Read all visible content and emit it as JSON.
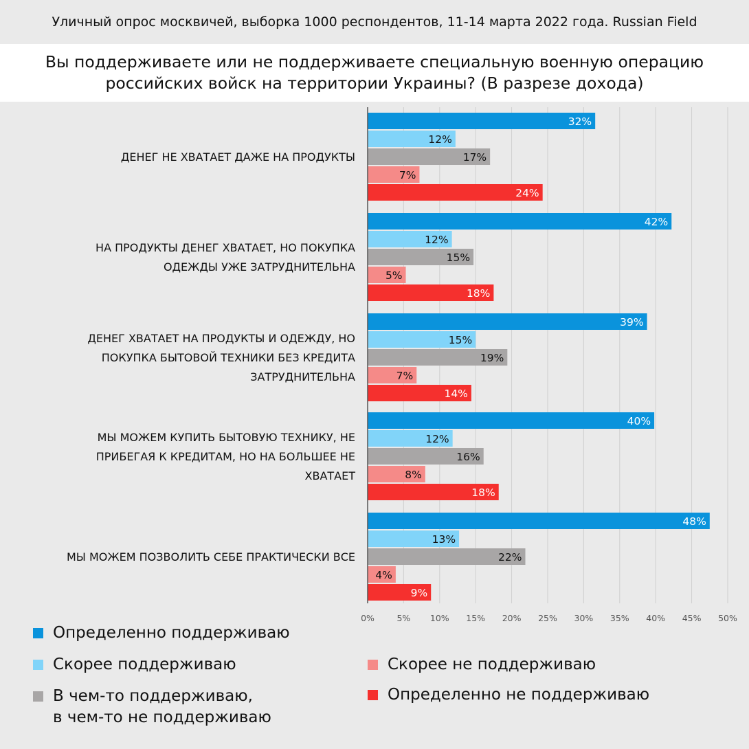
{
  "header": "Уличный опрос москвичей, выборка 1000 респондентов, 11-14 марта 2022 года. Russian Field",
  "chart_data": {
    "type": "bar",
    "orientation": "horizontal",
    "title": "Вы поддерживаете или не поддерживаете специальную военную операцию\nроссийских войск на территории Украины? (В разрезе дохода)",
    "xlim": [
      0,
      50
    ],
    "ticks": [
      "0%",
      "5%",
      "10%",
      "15%",
      "20%",
      "25%",
      "30%",
      "35%",
      "40%",
      "45%",
      "50%"
    ],
    "grid": true,
    "legend_position": "bottom",
    "categories": [
      [
        "ДЕНЕГ НЕ ХВАТАЕТ ДАЖЕ НА ПРОДУКТЫ"
      ],
      [
        "НА ПРОДУКТЫ ДЕНЕГ ХВАТАЕТ, НО ПОКУПКА",
        "ОДЕЖДЫ УЖЕ ЗАТРУДНИТЕЛЬНА"
      ],
      [
        "ДЕНЕГ ХВАТАЕТ НА ПРОДУКТЫ И ОДЕЖДУ, НО",
        "ПОКУПКА БЫТОВОЙ ТЕХНИКИ БЕЗ КРЕДИТА",
        "ЗАТРУДНИТЕЛЬНА"
      ],
      [
        "МЫ МОЖЕМ КУПИТЬ БЫТОВУЮ ТЕХНИКУ, НЕ",
        "ПРИБЕГАЯ К КРЕДИТАМ, НО НА БОЛЬШЕЕ НЕ",
        "ХВАТАЕТ"
      ],
      [
        "МЫ МОЖЕМ ПОЗВОЛИТЬ СЕБЕ ПРАКТИЧЕСКИ ВСЕ"
      ]
    ],
    "series": [
      {
        "name": "Определенно поддерживаю",
        "color": "#0a93dc",
        "label_color": "#ffffff",
        "values": [
          31.6,
          42.2,
          38.8,
          39.8,
          47.5
        ],
        "labels": [
          "32%",
          "42%",
          "39%",
          "40%",
          "48%"
        ]
      },
      {
        "name": "Скорее поддерживаю",
        "color": "#81d4f9",
        "label_color": "#111111",
        "values": [
          12.2,
          11.7,
          15.0,
          11.8,
          12.7
        ],
        "labels": [
          "12%",
          "12%",
          "15%",
          "12%",
          "13%"
        ]
      },
      {
        "name": "В чем-то поддерживаю,\nв чем-то не поддерживаю",
        "color": "#a8a6a6",
        "label_color": "#111111",
        "values": [
          17.0,
          14.7,
          19.4,
          16.1,
          21.9
        ],
        "labels": [
          "17%",
          "15%",
          "19%",
          "16%",
          "22%"
        ]
      },
      {
        "name": "Скорее не поддерживаю",
        "color": "#f58a88",
        "label_color": "#111111",
        "values": [
          7.2,
          5.3,
          6.8,
          8.0,
          3.9
        ],
        "labels": [
          "7%",
          "5%",
          "7%",
          "8%",
          "4%"
        ]
      },
      {
        "name": "Определенно не поддерживаю",
        "color": "#f5302e",
        "label_color": "#ffffff",
        "values": [
          24.3,
          17.5,
          14.4,
          18.2,
          8.8
        ],
        "labels": [
          "24%",
          "18%",
          "14%",
          "18%",
          "9%"
        ]
      }
    ]
  }
}
